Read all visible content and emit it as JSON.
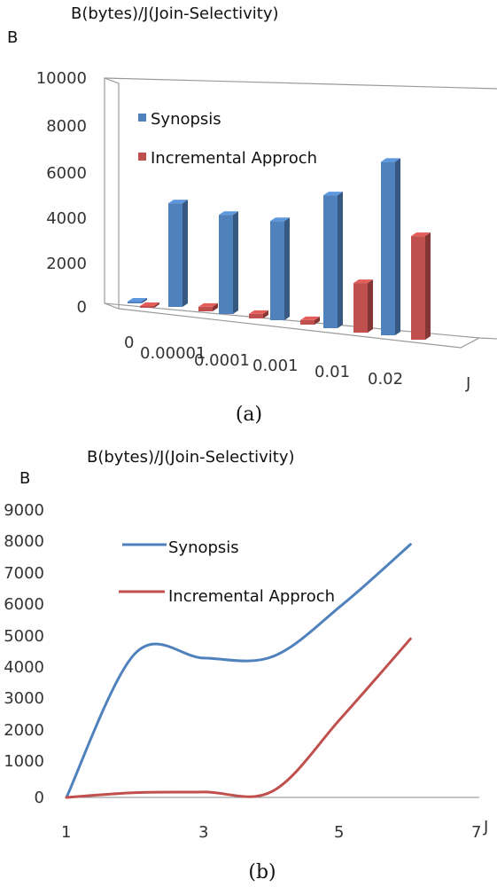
{
  "charts": [
    {
      "caption": "(a)",
      "title": "B(bytes)/J(Join-Selectivity)",
      "y_axis_label": "B",
      "x_axis_label": "J",
      "y_ticks": [
        "10000",
        "8000",
        "6000",
        "4000",
        "2000",
        "0"
      ],
      "x_ticks": [
        "0",
        "0.00001",
        "0.0001",
        "0.001",
        "0.01",
        "0.02"
      ]
    },
    {
      "caption": "(b)",
      "title": "B(bytes)/J(Join-Selectivity)",
      "y_axis_label": "B",
      "x_axis_label": "J",
      "y_ticks": [
        "9000",
        "8000",
        "7000",
        "6000",
        "5000",
        "4000",
        "3000",
        "2000",
        "1000",
        "0"
      ],
      "x_ticks": [
        "1",
        "3",
        "5",
        "7"
      ]
    }
  ],
  "colors": {
    "synopsis": "#4f81bd",
    "incremental": "#c0504d"
  },
  "chart_data": [
    {
      "type": "bar",
      "style": "3d-clustered",
      "title": "B(bytes)/J(Join-Selectivity)",
      "xlabel": "J",
      "ylabel": "B",
      "ylim": [
        0,
        10000
      ],
      "categories": [
        "0",
        "0.00001",
        "0.0001",
        "0.001",
        "0.01",
        "0.02"
      ],
      "series": [
        {
          "name": "Synopsis",
          "values": [
            0,
            4600,
            4400,
            4400,
            5900,
            7700
          ]
        },
        {
          "name": "Incremental Approch",
          "values": [
            0,
            200,
            200,
            200,
            2200,
            4600
          ]
        }
      ],
      "legend": "top-left",
      "grid": false
    },
    {
      "type": "line",
      "style": "smoothed",
      "title": "B(bytes)/J(Join-Selectivity)",
      "xlabel": "J",
      "ylabel": "B",
      "xlim": [
        1,
        7
      ],
      "ylim": [
        0,
        9000
      ],
      "x": [
        1,
        2,
        3,
        4,
        5,
        6
      ],
      "series": [
        {
          "name": "Synopsis",
          "values": [
            0,
            4500,
            4350,
            4400,
            6000,
            7900
          ]
        },
        {
          "name": "Incremental Approch",
          "values": [
            0,
            150,
            170,
            200,
            2500,
            4950
          ]
        }
      ],
      "legend": "top-left",
      "grid": false
    }
  ]
}
